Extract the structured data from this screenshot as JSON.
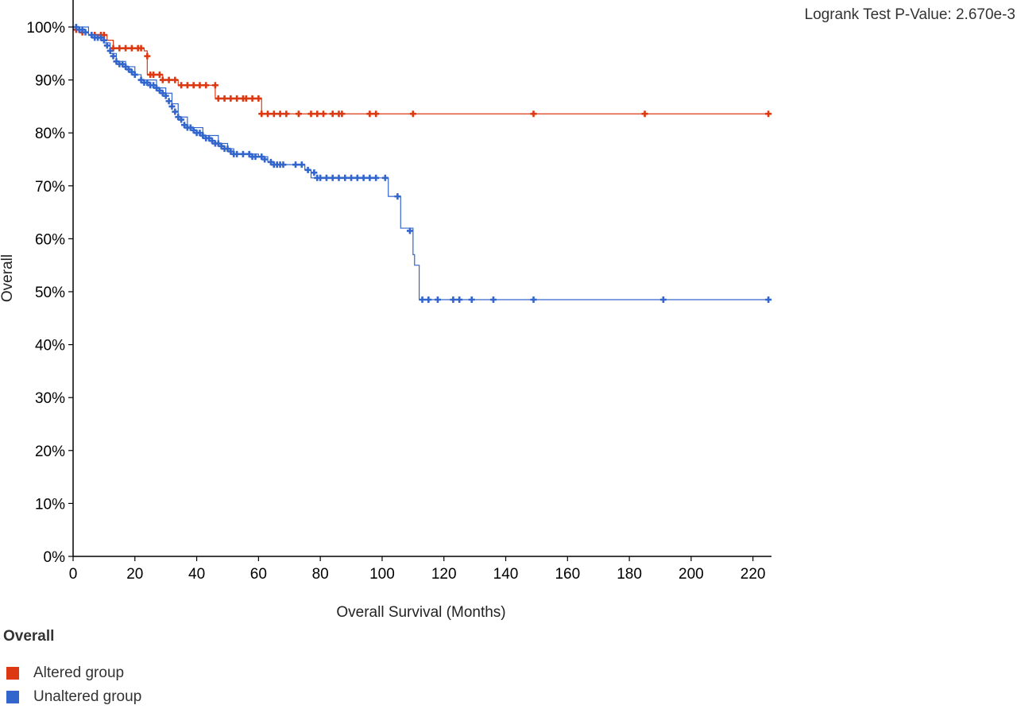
{
  "pvalue_text": "Logrank Test P-Value: 2.670e-3",
  "legend": {
    "title": "Overall",
    "items": [
      {
        "label": "Altered group",
        "color": "#dc3912"
      },
      {
        "label": "Unaltered group",
        "color": "#3366cc"
      }
    ]
  },
  "chart_data": {
    "type": "line",
    "title": "",
    "xlabel": "Overall Survival (Months)",
    "ylabel": "Overall",
    "xlim": [
      0,
      226
    ],
    "ylim": [
      0,
      100
    ],
    "xticks": [
      "0",
      "20",
      "40",
      "60",
      "80",
      "100",
      "120",
      "140",
      "160",
      "180",
      "200",
      "220"
    ],
    "yticks": [
      "0%",
      "10%",
      "20%",
      "30%",
      "40%",
      "50%",
      "60%",
      "70%",
      "80%",
      "90%",
      "100%"
    ],
    "series": [
      {
        "name": "Altered group",
        "color": "#dc3912",
        "steps": [
          [
            0,
            100
          ],
          [
            2,
            99
          ],
          [
            5,
            98.5
          ],
          [
            11,
            97.5
          ],
          [
            13,
            96
          ],
          [
            23,
            95.5
          ],
          [
            24,
            91
          ],
          [
            29,
            90
          ],
          [
            34,
            89
          ],
          [
            46,
            86.5
          ],
          [
            61,
            83.6
          ],
          [
            226,
            83.6
          ]
        ],
        "censored": [
          [
            1,
            99.5
          ],
          [
            3,
            99
          ],
          [
            7,
            98.5
          ],
          [
            9,
            98.5
          ],
          [
            10,
            98.5
          ],
          [
            13,
            96
          ],
          [
            15,
            96
          ],
          [
            17,
            96
          ],
          [
            19,
            96
          ],
          [
            21,
            96
          ],
          [
            22,
            96
          ],
          [
            24,
            94.5
          ],
          [
            25,
            91
          ],
          [
            26,
            91
          ],
          [
            28,
            91
          ],
          [
            29,
            90
          ],
          [
            31,
            90
          ],
          [
            33,
            90
          ],
          [
            35,
            89
          ],
          [
            37,
            89
          ],
          [
            39,
            89
          ],
          [
            41,
            89
          ],
          [
            43,
            89
          ],
          [
            46,
            89
          ],
          [
            47,
            86.5
          ],
          [
            49,
            86.5
          ],
          [
            51,
            86.5
          ],
          [
            53,
            86.5
          ],
          [
            55,
            86.5
          ],
          [
            56,
            86.5
          ],
          [
            58,
            86.5
          ],
          [
            60,
            86.5
          ],
          [
            61,
            83.6
          ],
          [
            63,
            83.6
          ],
          [
            65,
            83.6
          ],
          [
            67,
            83.6
          ],
          [
            69,
            83.6
          ],
          [
            73,
            83.6
          ],
          [
            77,
            83.6
          ],
          [
            79,
            83.6
          ],
          [
            81,
            83.6
          ],
          [
            84,
            83.6
          ],
          [
            86,
            83.6
          ],
          [
            87,
            83.6
          ],
          [
            96,
            83.6
          ],
          [
            98,
            83.6
          ],
          [
            110,
            83.6
          ],
          [
            149,
            83.6
          ],
          [
            185,
            83.6
          ],
          [
            225,
            83.6
          ]
        ]
      },
      {
        "name": "Unaltered group",
        "color": "#3366cc",
        "steps": [
          [
            0,
            100
          ],
          [
            5,
            98.5
          ],
          [
            8,
            98
          ],
          [
            10,
            97
          ],
          [
            12,
            95
          ],
          [
            14,
            93.5
          ],
          [
            17,
            92.5
          ],
          [
            20,
            91
          ],
          [
            22,
            90
          ],
          [
            27,
            88.5
          ],
          [
            30,
            87.5
          ],
          [
            32,
            85.5
          ],
          [
            34,
            83
          ],
          [
            37,
            81
          ],
          [
            42,
            79.5
          ],
          [
            47,
            78
          ],
          [
            50,
            77
          ],
          [
            52,
            76
          ],
          [
            60,
            75.5
          ],
          [
            63,
            74.5
          ],
          [
            65,
            74
          ],
          [
            75,
            73
          ],
          [
            77,
            71.5
          ],
          [
            102,
            68
          ],
          [
            106,
            62
          ],
          [
            110,
            57
          ],
          [
            110.5,
            55
          ],
          [
            112,
            48.5
          ],
          [
            226,
            48.5
          ]
        ],
        "censored": [
          [
            1,
            100
          ],
          [
            2,
            99.5
          ],
          [
            3,
            99.5
          ],
          [
            4,
            99
          ],
          [
            6,
            98.5
          ],
          [
            7,
            98
          ],
          [
            8,
            98
          ],
          [
            9,
            98
          ],
          [
            10,
            97.5
          ],
          [
            11,
            96.5
          ],
          [
            12,
            95.5
          ],
          [
            13,
            94.5
          ],
          [
            14,
            93.5
          ],
          [
            15,
            93
          ],
          [
            16,
            93
          ],
          [
            17,
            92.5
          ],
          [
            18,
            92
          ],
          [
            19,
            91.5
          ],
          [
            20,
            91
          ],
          [
            22,
            90
          ],
          [
            23,
            89.5
          ],
          [
            24,
            89.5
          ],
          [
            25,
            89
          ],
          [
            26,
            89
          ],
          [
            27,
            88.5
          ],
          [
            28,
            88
          ],
          [
            29,
            87.5
          ],
          [
            30,
            87
          ],
          [
            31,
            86
          ],
          [
            32,
            85
          ],
          [
            33,
            84
          ],
          [
            34,
            83
          ],
          [
            35,
            82.5
          ],
          [
            36,
            81.5
          ],
          [
            37,
            81
          ],
          [
            38,
            81
          ],
          [
            39,
            80.5
          ],
          [
            40,
            80
          ],
          [
            41,
            80
          ],
          [
            42,
            79.5
          ],
          [
            43,
            79
          ],
          [
            44,
            79
          ],
          [
            45,
            78.5
          ],
          [
            46,
            78
          ],
          [
            47,
            78
          ],
          [
            48,
            77.5
          ],
          [
            49,
            77
          ],
          [
            50,
            77
          ],
          [
            51,
            76.5
          ],
          [
            52,
            76
          ],
          [
            53,
            76
          ],
          [
            55,
            76
          ],
          [
            57,
            76
          ],
          [
            58,
            75.5
          ],
          [
            59,
            75.5
          ],
          [
            61,
            75.5
          ],
          [
            62,
            75
          ],
          [
            64,
            74.5
          ],
          [
            65,
            74
          ],
          [
            66,
            74
          ],
          [
            67,
            74
          ],
          [
            68,
            74
          ],
          [
            72,
            74
          ],
          [
            74,
            74
          ],
          [
            76,
            73
          ],
          [
            78,
            72.5
          ],
          [
            79,
            71.5
          ],
          [
            80,
            71.5
          ],
          [
            82,
            71.5
          ],
          [
            84,
            71.5
          ],
          [
            86,
            71.5
          ],
          [
            88,
            71.5
          ],
          [
            90,
            71.5
          ],
          [
            92,
            71.5
          ],
          [
            94,
            71.5
          ],
          [
            96,
            71.5
          ],
          [
            98,
            71.5
          ],
          [
            101,
            71.5
          ],
          [
            105,
            68
          ],
          [
            109,
            61.5
          ],
          [
            113,
            48.5
          ],
          [
            115,
            48.5
          ],
          [
            118,
            48.5
          ],
          [
            123,
            48.5
          ],
          [
            125,
            48.5
          ],
          [
            129,
            48.5
          ],
          [
            136,
            48.5
          ],
          [
            149,
            48.5
          ],
          [
            191,
            48.5
          ],
          [
            225,
            48.5
          ]
        ]
      }
    ]
  }
}
